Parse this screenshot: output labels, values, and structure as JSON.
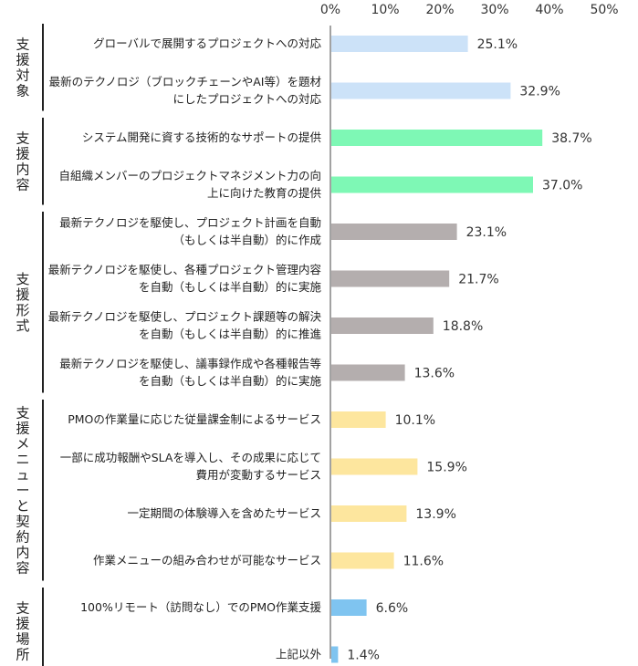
{
  "chart_data": {
    "type": "bar",
    "orientation": "horizontal",
    "title": "",
    "xlabel": "",
    "ylabel": "",
    "xlim": [
      0,
      50
    ],
    "x_ticks": [
      "0%",
      "10%",
      "20%",
      "30%",
      "40%",
      "50%"
    ],
    "tick_axis_position": "top",
    "grid": false,
    "value_suffix": "%",
    "colors": {
      "支援対象": "#cce2f8",
      "支援内容": "#7ef8b5",
      "支援形式": "#b4aeae",
      "支援メニューと契約内容": "#fde69e",
      "支援場所": "#7fc4f0"
    },
    "groups": [
      {
        "name": "支援対象",
        "categories": [
          {
            "label_lines": [
              "グローバルで展開するプロジェクトへの対応"
            ],
            "value": 25.1,
            "value_label": "25.1%"
          },
          {
            "label_lines": [
              "最新のテクノロジ（ブロックチェーンやAI等）を題材",
              "にしたプロジェクトへの対応"
            ],
            "value": 32.9,
            "value_label": "32.9%"
          }
        ]
      },
      {
        "name": "支援内容",
        "categories": [
          {
            "label_lines": [
              "システム開発に資する技術的なサポートの提供"
            ],
            "value": 38.7,
            "value_label": "38.7%"
          },
          {
            "label_lines": [
              "自組織メンバーのプロジェクトマネジメント力の向",
              "上に向けた教育の提供"
            ],
            "value": 37.0,
            "value_label": "37.0%"
          }
        ]
      },
      {
        "name": "支援形式",
        "categories": [
          {
            "label_lines": [
              "最新テクノロジを駆使し、プロジェクト計画を自動",
              "（もしくは半自動）的に作成"
            ],
            "value": 23.1,
            "value_label": "23.1%"
          },
          {
            "label_lines": [
              "最新テクノロジを駆使し、各種プロジェクト管理内容",
              "を自動（もしくは半自動）的に実施"
            ],
            "value": 21.7,
            "value_label": "21.7%"
          },
          {
            "label_lines": [
              "最新テクノロジを駆使し、プロジェクト課題等の解決",
              "を自動（もしくは半自動）的に推進"
            ],
            "value": 18.8,
            "value_label": "18.8%"
          },
          {
            "label_lines": [
              "最新テクノロジを駆使し、議事録作成や各種報告等",
              "を自動（もしくは半自動）的に実施"
            ],
            "value": 13.6,
            "value_label": "13.6%"
          }
        ]
      },
      {
        "name": "支援メニューと契約内容",
        "categories": [
          {
            "label_lines": [
              "PMOの作業量に応じた従量課金制によるサービス"
            ],
            "value": 10.1,
            "value_label": "10.1%"
          },
          {
            "label_lines": [
              "一部に成功報酬やSLAを導入し、その成果に応じて",
              "費用が変動するサービス"
            ],
            "value": 15.9,
            "value_label": "15.9%"
          },
          {
            "label_lines": [
              "一定期間の体験導入を含めたサービス"
            ],
            "value": 13.9,
            "value_label": "13.9%"
          },
          {
            "label_lines": [
              "作業メニューの組み合わせが可能なサービス"
            ],
            "value": 11.6,
            "value_label": "11.6%"
          }
        ]
      },
      {
        "name": "支援場所",
        "categories": [
          {
            "label_lines": [
              "100%リモート（訪問なし）でのPMO作業支援"
            ],
            "value": 6.6,
            "value_label": "6.6%"
          },
          {
            "label_lines": [
              "上記以外"
            ],
            "value": 1.4,
            "value_label": "1.4%"
          }
        ]
      }
    ]
  }
}
